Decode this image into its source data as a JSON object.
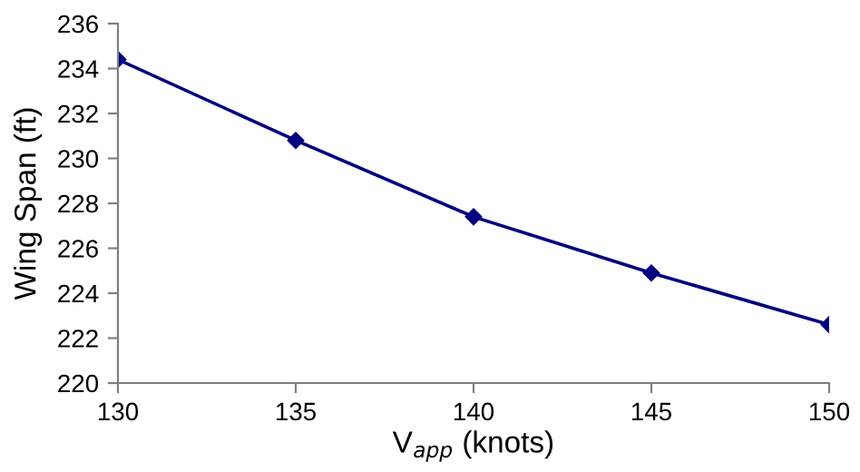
{
  "chart_data": {
    "type": "line",
    "xlabel": "V$_{app}$ (knots)",
    "ylabel": "Wing Span (ft)",
    "x": [
      130,
      135,
      140,
      145,
      150
    ],
    "series": [
      {
        "color": "#000080",
        "values": [
          234.4,
          230.8,
          227.4,
          224.9,
          222.6
        ]
      }
    ],
    "xlim": [
      130,
      150
    ],
    "xticks": [
      130,
      135,
      140,
      145,
      150
    ],
    "ylim": [
      220,
      236
    ],
    "yticks": [
      220,
      222,
      224,
      226,
      228,
      230,
      232,
      234,
      236
    ],
    "marker": "diamond",
    "line_style": "solid",
    "grid": false,
    "legend": false
  }
}
